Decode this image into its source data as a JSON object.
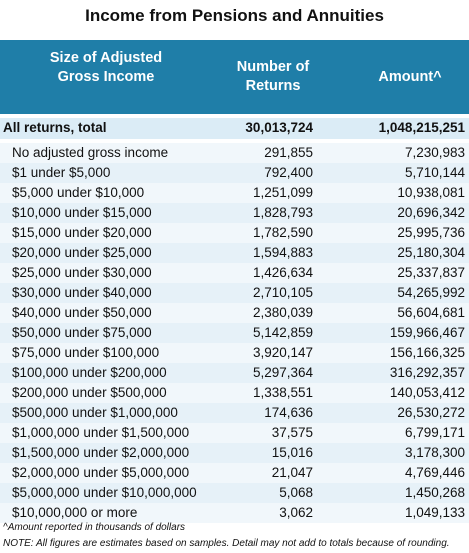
{
  "title": "Income from Pensions and Annuities",
  "header": [
    "Size of Adjusted Gross Income",
    "Number of Returns",
    "Amount^"
  ],
  "total": [
    "All returns, total",
    "30,013,724",
    "1,048,215,251"
  ],
  "rows": [
    [
      "No adjusted gross income",
      "291,855",
      "7,230,983"
    ],
    [
      "$1 under $5,000",
      "792,400",
      "5,710,144"
    ],
    [
      "$5,000 under $10,000",
      "1,251,099",
      "10,938,081"
    ],
    [
      "$10,000 under $15,000",
      "1,828,793",
      "20,696,342"
    ],
    [
      "$15,000 under $20,000",
      "1,782,590",
      "25,995,736"
    ],
    [
      "$20,000 under $25,000",
      "1,594,883",
      "25,180,304"
    ],
    [
      "$25,000 under $30,000",
      "1,426,634",
      "25,337,837"
    ],
    [
      "$30,000 under $40,000",
      "2,710,105",
      "54,265,992"
    ],
    [
      "$40,000 under $50,000",
      "2,380,039",
      "56,604,681"
    ],
    [
      "$50,000 under $75,000",
      "5,142,859",
      "159,966,467"
    ],
    [
      "$75,000 under $100,000",
      "3,920,147",
      "156,166,325"
    ],
    [
      "$100,000 under $200,000",
      "5,297,364",
      "316,292,357"
    ],
    [
      "$200,000 under $500,000",
      "1,338,551",
      "140,053,412"
    ],
    [
      "$500,000 under $1,000,000",
      "174,636",
      "26,530,272"
    ],
    [
      "$1,000,000 under $1,500,000",
      "37,575",
      "6,799,171"
    ],
    [
      "$1,500,000 under $2,000,000",
      "15,016",
      "3,178,300"
    ],
    [
      "$2,000,000 under $5,000,000",
      "21,047",
      "4,769,446"
    ],
    [
      "$5,000,000 under $10,000,000",
      "5,068",
      "1,450,268"
    ],
    [
      "$10,000,000 or more",
      "3,062",
      "1,049,133"
    ]
  ],
  "notes": [
    "^Amount reported in thousands of dollars",
    "NOTE: All figures are estimates based on samples. Detail may not add to totals because of rounding."
  ]
}
